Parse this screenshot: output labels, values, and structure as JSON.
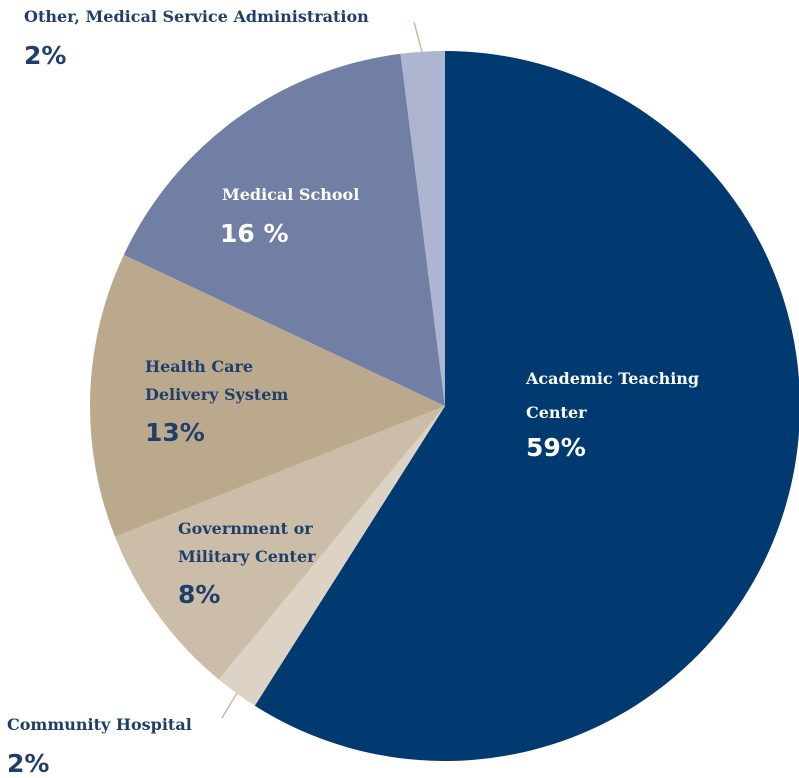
{
  "chart_data": {
    "type": "pie",
    "slices": [
      {
        "label": "Academic Teaching Center",
        "value_label": "59%",
        "value": 59,
        "color": "#003a70",
        "text_color": "#ffffff"
      },
      {
        "label": "Community Hospital",
        "value_label": "2%",
        "value": 2,
        "color": "#ddd3c4",
        "text_color": "#1f3f6a"
      },
      {
        "label": "Government or Military Center",
        "value_label": "8%",
        "value": 8,
        "color": "#cbbda7",
        "text_color": "#1f3f6a"
      },
      {
        "label": "Health Care Delivery System",
        "value_label": "13%",
        "value": 13,
        "color": "#bba98d",
        "text_color": "#1f3f6a"
      },
      {
        "label": "Medical School",
        "value_label": "16 %",
        "value": 16,
        "color": "#717fa5",
        "text_color": "#ffffff"
      },
      {
        "label": "Other, Medical Service Administration",
        "value_label": "2%",
        "value": 2,
        "color": "#aeb5d0",
        "text_color": "#1f3f6a"
      }
    ]
  }
}
